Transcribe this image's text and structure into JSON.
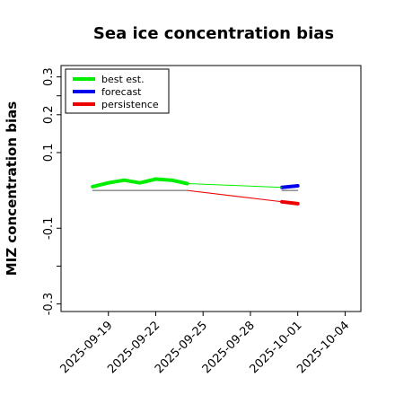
{
  "chart_data": {
    "type": "line",
    "title": "Sea ice concentration bias",
    "ylabel": "MIZ concentration bias",
    "xlabel": "",
    "xlim": [
      "2025-09-16",
      "2025-10-05"
    ],
    "ylim": [
      -0.32,
      0.33
    ],
    "y_ticks": [
      {
        "value": 0.3,
        "label": "0.3"
      },
      {
        "value": 0.25,
        "label": ""
      },
      {
        "value": 0.2,
        "label": "0.2"
      },
      {
        "value": 0.1,
        "label": "0.1"
      },
      {
        "value": -0.1,
        "label": "-0.1"
      },
      {
        "value": -0.2,
        "label": ""
      },
      {
        "value": -0.3,
        "label": "-0.3"
      }
    ],
    "x_ticks": [
      {
        "value": "2025-09-19",
        "label": "2025-09-19",
        "color": "#000000"
      },
      {
        "value": "2025-09-22",
        "label": "2025-09-22",
        "color": "#000000"
      },
      {
        "value": "2025-09-25",
        "label": "2025-09-25",
        "color": "#228b22"
      },
      {
        "value": "2025-09-28",
        "label": "2025-09-28",
        "color": "#000000"
      },
      {
        "value": "2025-10-01",
        "label": "2025-10-01",
        "color": "#000000"
      },
      {
        "value": "2025-10-04",
        "label": "2025-10-04",
        "color": "#000000"
      }
    ],
    "legend_position": "top-left",
    "grid": false,
    "series": [
      {
        "name": "best est.",
        "color": "#00ee00",
        "role": "legend",
        "x": [
          "2025-09-18",
          "2025-09-19",
          "2025-09-20",
          "2025-09-21",
          "2025-09-22",
          "2025-09-23",
          "2025-09-24"
        ],
        "y": [
          0.01,
          0.02,
          0.027,
          0.02,
          0.03,
          0.027,
          0.018
        ]
      },
      {
        "name": "forecast",
        "color": "#0000ee",
        "role": "legend",
        "x": [
          "2025-09-30",
          "2025-10-01"
        ],
        "y": [
          0.008,
          0.012
        ]
      },
      {
        "name": "persistence",
        "color": "#ee0000",
        "role": "legend",
        "x": [
          "2025-09-30",
          "2025-10-01"
        ],
        "y": [
          -0.03,
          -0.035
        ]
      },
      {
        "name": "",
        "color": "#00ee00",
        "role": "thin",
        "x": [
          "2025-09-24",
          "2025-09-30"
        ],
        "y": [
          0.018,
          0.008
        ]
      },
      {
        "name": "",
        "color": "#ee0000",
        "role": "thin",
        "x": [
          "2025-09-24",
          "2025-09-30"
        ],
        "y": [
          0.0,
          -0.03
        ]
      },
      {
        "name": "",
        "color": "#555555",
        "role": "thin",
        "x": [
          "2025-09-18",
          "2025-09-24"
        ],
        "y": [
          0.0,
          0.0
        ]
      },
      {
        "name": "",
        "color": "#555555",
        "role": "thin",
        "x": [
          "2025-09-30",
          "2025-10-01"
        ],
        "y": [
          0.0,
          0.0
        ]
      }
    ]
  }
}
